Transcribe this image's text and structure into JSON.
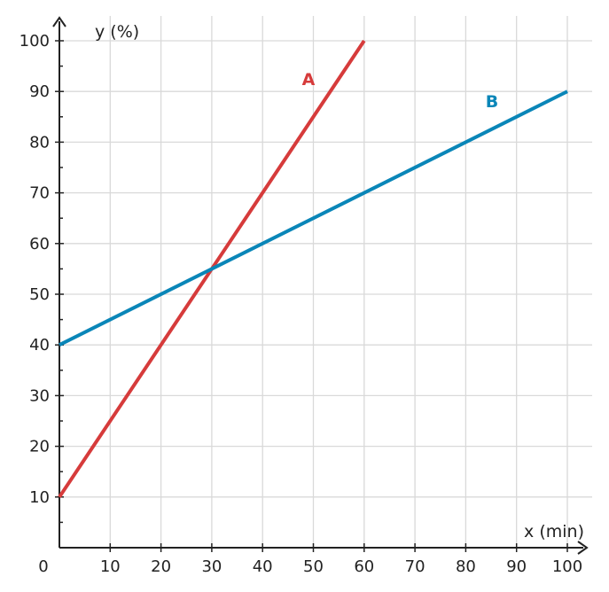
{
  "chart_data": {
    "type": "line",
    "xlabel": "x (min)",
    "ylabel": "y (%)",
    "origin_label": "0",
    "xlim": [
      0,
      100
    ],
    "ylim": [
      0,
      100
    ],
    "x_ticks": [
      10,
      20,
      30,
      40,
      50,
      60,
      70,
      80,
      90,
      100
    ],
    "y_ticks": [
      10,
      20,
      30,
      40,
      50,
      60,
      70,
      80,
      90,
      100
    ],
    "grid": true,
    "series": [
      {
        "name": "A",
        "color": "#d63b3b",
        "x": [
          0,
          60
        ],
        "y": [
          10,
          100
        ]
      },
      {
        "name": "B",
        "color": "#0a86b8",
        "x": [
          0,
          100
        ],
        "y": [
          40,
          90
        ]
      }
    ]
  }
}
